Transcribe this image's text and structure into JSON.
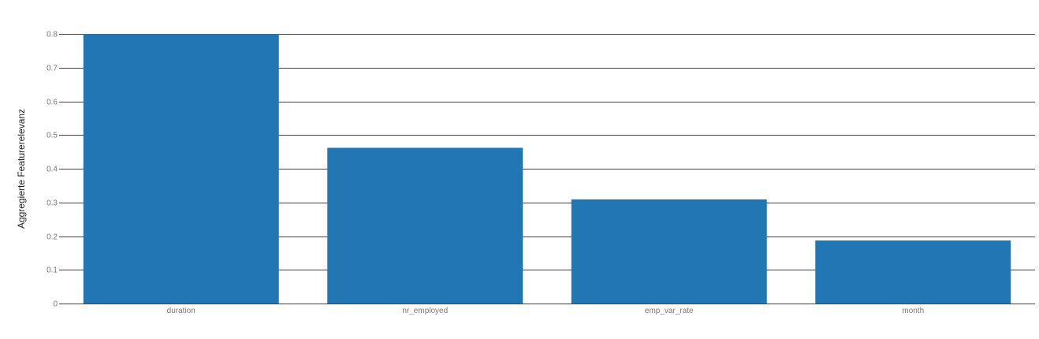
{
  "chart_data": {
    "type": "bar",
    "title": "",
    "xlabel": "",
    "ylabel": "Aggregierte Featurerelevanz",
    "categories": [
      "duration",
      "nr_employed",
      "emp_var_rate",
      "month"
    ],
    "values": [
      0.8,
      0.462,
      0.309,
      0.187
    ],
    "ylim": [
      0,
      0.8
    ],
    "yticks": [
      0,
      0.1,
      0.2,
      0.3,
      0.4,
      0.5,
      0.6,
      0.7,
      0.8
    ],
    "ytick_labels": [
      "0",
      "0.1",
      "0.2",
      "0.3",
      "0.4",
      "0.5",
      "0.6",
      "0.7",
      "0.8"
    ],
    "grid": true,
    "bar_color": "#2176b3"
  }
}
